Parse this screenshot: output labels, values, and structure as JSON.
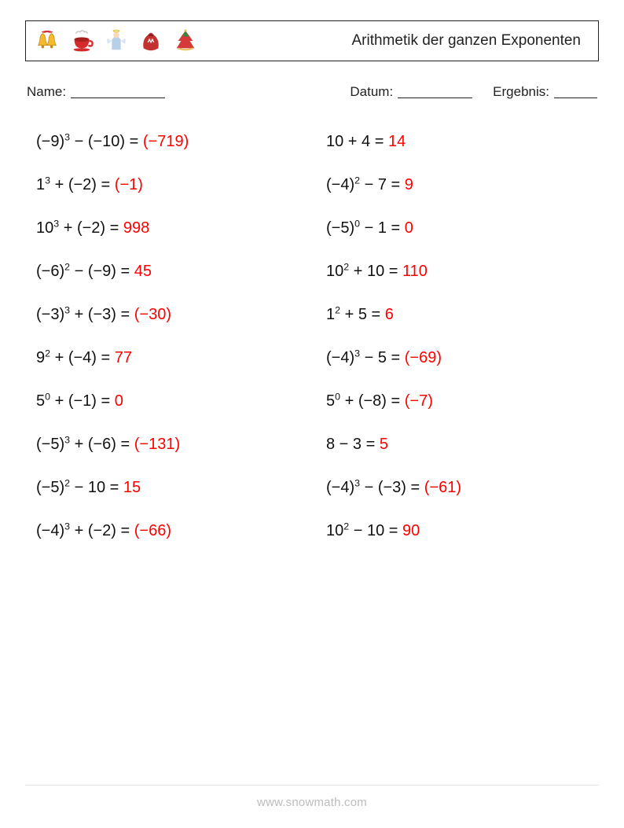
{
  "header": {
    "title": "Arithmetik der ganzen Exponenten",
    "icons": [
      "bells-icon",
      "cup-icon",
      "angel-icon",
      "sack-icon",
      "hat-icon"
    ]
  },
  "meta": {
    "name_label": "Name:",
    "date_label": "Datum:",
    "result_label": "Ergebnis:"
  },
  "styling": {
    "text_color": "#111111",
    "answer_color": "#ff0000",
    "border_color": "#222222",
    "background_color": "#ffffff",
    "footer_color": "#bcbcbc",
    "font_size_title": 19,
    "font_size_meta": 17,
    "font_size_problem": 20,
    "font_size_footer": 15,
    "columns": 2,
    "row_gap": 32
  },
  "problems": {
    "left": [
      {
        "base1": "(−9)",
        "exp1": "3",
        "op": "−",
        "term2": "(−10)",
        "answer": "(−719)"
      },
      {
        "base1": "1",
        "exp1": "3",
        "op": "+",
        "term2": "(−2)",
        "answer": "(−1)"
      },
      {
        "base1": "10",
        "exp1": "3",
        "op": "+",
        "term2": "(−2)",
        "answer": "998"
      },
      {
        "base1": "(−6)",
        "exp1": "2",
        "op": "−",
        "term2": "(−9)",
        "answer": "45"
      },
      {
        "base1": "(−3)",
        "exp1": "3",
        "op": "+",
        "term2": "(−3)",
        "answer": "(−30)"
      },
      {
        "base1": "9",
        "exp1": "2",
        "op": "+",
        "term2": "(−4)",
        "answer": "77"
      },
      {
        "base1": "5",
        "exp1": "0",
        "op": "+",
        "term2": "(−1)",
        "answer": "0"
      },
      {
        "base1": "(−5)",
        "exp1": "3",
        "op": "+",
        "term2": "(−6)",
        "answer": "(−131)"
      },
      {
        "base1": "(−5)",
        "exp1": "2",
        "op": "−",
        "term2": "10",
        "answer": "15"
      },
      {
        "base1": "(−4)",
        "exp1": "3",
        "op": "+",
        "term2": "(−2)",
        "answer": "(−66)"
      }
    ],
    "right": [
      {
        "base1": "10",
        "exp1": "",
        "op": "+",
        "term2": "4",
        "answer": "14"
      },
      {
        "base1": "(−4)",
        "exp1": "2",
        "op": "−",
        "term2": "7",
        "answer": "9"
      },
      {
        "base1": "(−5)",
        "exp1": "0",
        "op": "−",
        "term2": "1",
        "answer": "0"
      },
      {
        "base1": "10",
        "exp1": "2",
        "op": "+",
        "term2": "10",
        "answer": "110"
      },
      {
        "base1": "1",
        "exp1": "2",
        "op": "+",
        "term2": "5",
        "answer": "6"
      },
      {
        "base1": "(−4)",
        "exp1": "3",
        "op": "−",
        "term2": "5",
        "answer": "(−69)"
      },
      {
        "base1": "5",
        "exp1": "0",
        "op": "+",
        "term2": "(−8)",
        "answer": "(−7)"
      },
      {
        "base1": "8",
        "exp1": "",
        "op": "−",
        "term2": "3",
        "answer": "5"
      },
      {
        "base1": "(−4)",
        "exp1": "3",
        "op": "−",
        "term2": "(−3)",
        "answer": "(−61)"
      },
      {
        "base1": "10",
        "exp1": "2",
        "op": "−",
        "term2": "10",
        "answer": "90"
      }
    ]
  },
  "footer": {
    "text": "www.snowmath.com"
  }
}
